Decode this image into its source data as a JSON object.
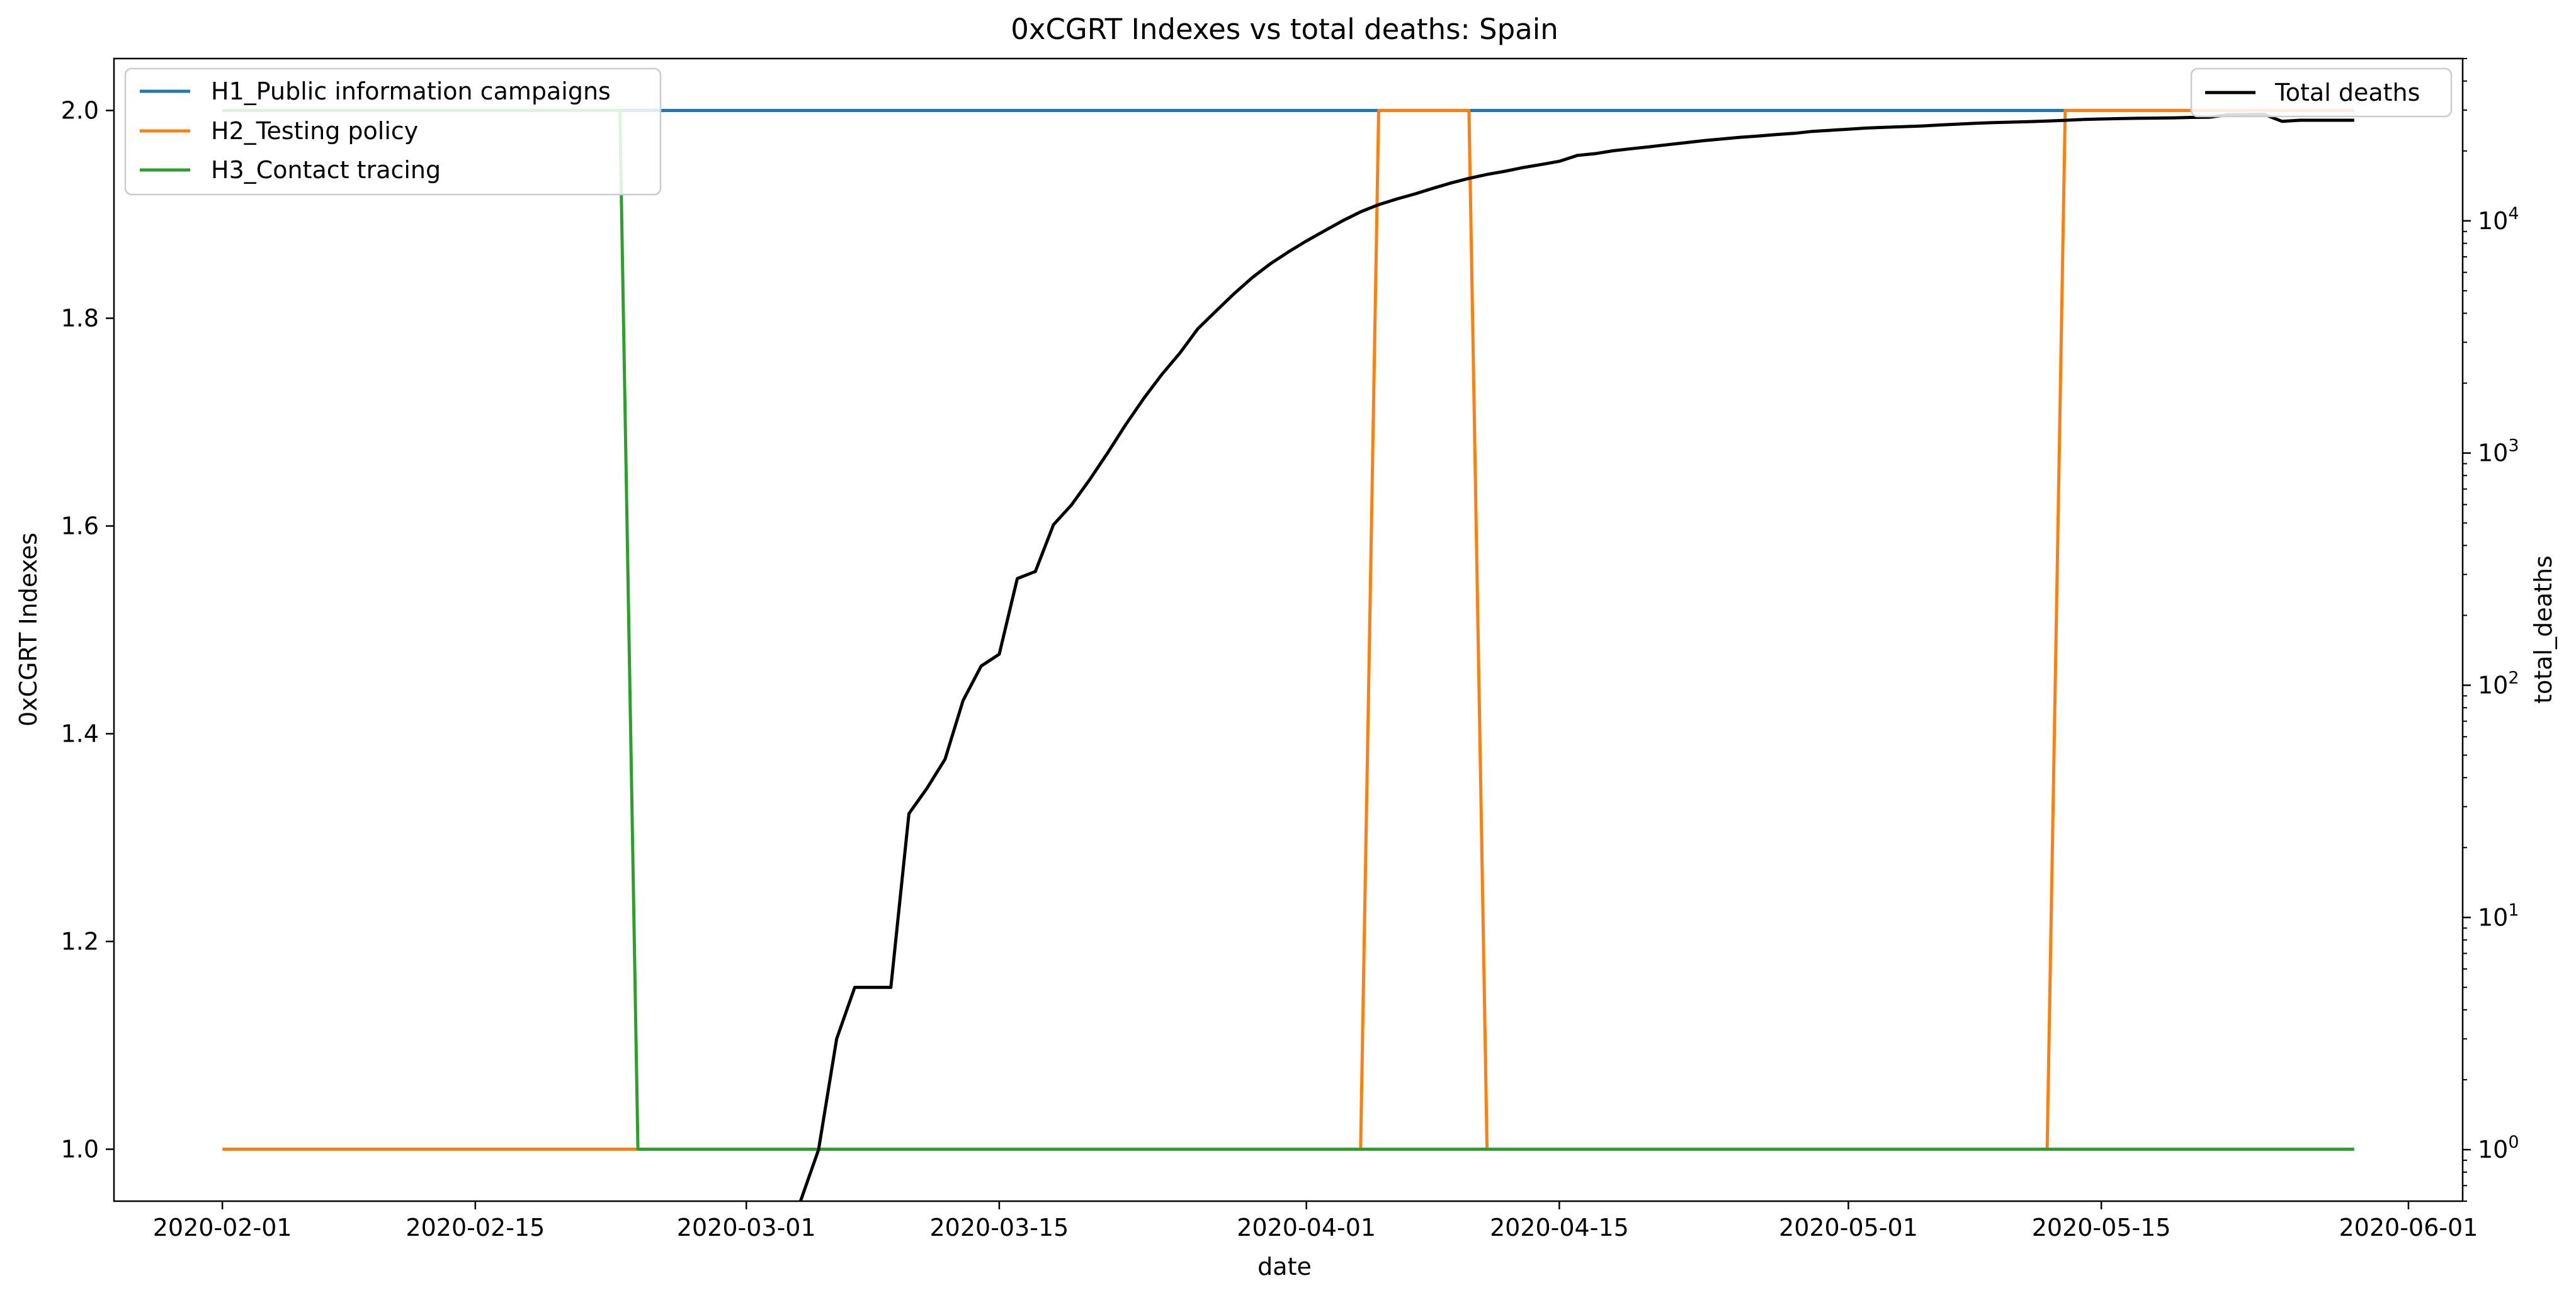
{
  "chart_data": {
    "type": "line",
    "title": "0xCGRT Indexes vs total deaths:  Spain",
    "xlabel": "date",
    "ylabel": "0xCGRT Indexes",
    "y2label": "total_deaths",
    "x_ticks": [
      "2020-02-01",
      "2020-02-15",
      "2020-03-01",
      "2020-03-15",
      "2020-04-01",
      "2020-04-15",
      "2020-05-01",
      "2020-05-15",
      "2020-06-01"
    ],
    "xlim": [
      "2020-01-26",
      "2020-06-04"
    ],
    "ylim": [
      0.95,
      2.05
    ],
    "y_ticks": [
      "1.0",
      "1.2",
      "1.4",
      "1.6",
      "1.8",
      "2.0"
    ],
    "y2_scale": "log",
    "y2lim": [
      0.6,
      50000
    ],
    "y2_ticks": [
      {
        "base": "10",
        "exp": "0"
      },
      {
        "base": "10",
        "exp": "1"
      },
      {
        "base": "10",
        "exp": "2"
      },
      {
        "base": "10",
        "exp": "3"
      },
      {
        "base": "10",
        "exp": "4"
      }
    ],
    "grid": false,
    "legend_left_position": "top-left",
    "legend_right_position": "top-right",
    "series": [
      {
        "name": "H1_Public information campaigns",
        "axis": "left",
        "color": "#1f77b4",
        "points": [
          [
            "2020-02-01",
            2.0
          ],
          [
            "2020-05-29",
            2.0
          ]
        ]
      },
      {
        "name": "H2_Testing policy",
        "axis": "left",
        "color": "#ff7f0e",
        "points": [
          [
            "2020-02-01",
            1.0
          ],
          [
            "2020-04-04",
            1.0
          ],
          [
            "2020-04-05",
            2.0
          ],
          [
            "2020-04-10",
            2.0
          ],
          [
            "2020-04-11",
            1.0
          ],
          [
            "2020-05-12",
            1.0
          ],
          [
            "2020-05-13",
            2.0
          ],
          [
            "2020-05-29",
            2.0
          ]
        ]
      },
      {
        "name": "H3_Contact tracing",
        "axis": "left",
        "color": "#2ca02c",
        "points": [
          [
            "2020-02-01",
            2.0
          ],
          [
            "2020-02-23",
            2.0
          ],
          [
            "2020-02-24",
            1.0
          ],
          [
            "2020-05-29",
            1.0
          ]
        ]
      },
      {
        "name": "Total deaths",
        "axis": "right",
        "color": "#000000",
        "points": [
          [
            "2020-03-04",
            0.6
          ],
          [
            "2020-03-05",
            1
          ],
          [
            "2020-03-06",
            3
          ],
          [
            "2020-03-07",
            5
          ],
          [
            "2020-03-08",
            5
          ],
          [
            "2020-03-09",
            5
          ],
          [
            "2020-03-10",
            28
          ],
          [
            "2020-03-11",
            36
          ],
          [
            "2020-03-12",
            48
          ],
          [
            "2020-03-13",
            86
          ],
          [
            "2020-03-14",
            121
          ],
          [
            "2020-03-15",
            136
          ],
          [
            "2020-03-16",
            288
          ],
          [
            "2020-03-17",
            309
          ],
          [
            "2020-03-18",
            491
          ],
          [
            "2020-03-19",
            598
          ],
          [
            "2020-03-20",
            767
          ],
          [
            "2020-03-21",
            1002
          ],
          [
            "2020-03-22",
            1326
          ],
          [
            "2020-03-23",
            1720
          ],
          [
            "2020-03-24",
            2182
          ],
          [
            "2020-03-25",
            2696
          ],
          [
            "2020-03-26",
            3434
          ],
          [
            "2020-03-27",
            4089
          ],
          [
            "2020-03-28",
            4858
          ],
          [
            "2020-03-29",
            5690
          ],
          [
            "2020-03-30",
            6528
          ],
          [
            "2020-03-31",
            7340
          ],
          [
            "2020-04-01",
            8189
          ],
          [
            "2020-04-02",
            9053
          ],
          [
            "2020-04-03",
            10003
          ],
          [
            "2020-04-04",
            10935
          ],
          [
            "2020-04-05",
            11744
          ],
          [
            "2020-04-06",
            12418
          ],
          [
            "2020-04-07",
            13055
          ],
          [
            "2020-04-08",
            13798
          ],
          [
            "2020-04-09",
            14555
          ],
          [
            "2020-04-10",
            15238
          ],
          [
            "2020-04-11",
            15843
          ],
          [
            "2020-04-12",
            16353
          ],
          [
            "2020-04-13",
            16972
          ],
          [
            "2020-04-14",
            17489
          ],
          [
            "2020-04-15",
            18056
          ],
          [
            "2020-04-16",
            19130
          ],
          [
            "2020-04-17",
            19478
          ],
          [
            "2020-04-18",
            20043
          ],
          [
            "2020-04-19",
            20453
          ],
          [
            "2020-04-20",
            20852
          ],
          [
            "2020-04-21",
            21282
          ],
          [
            "2020-04-22",
            21717
          ],
          [
            "2020-04-23",
            22157
          ],
          [
            "2020-04-24",
            22524
          ],
          [
            "2020-04-25",
            22902
          ],
          [
            "2020-04-26",
            23190
          ],
          [
            "2020-04-27",
            23521
          ],
          [
            "2020-04-28",
            23822
          ],
          [
            "2020-04-29",
            24275
          ],
          [
            "2020-04-30",
            24543
          ],
          [
            "2020-05-01",
            24824
          ],
          [
            "2020-05-02",
            25100
          ],
          [
            "2020-05-03",
            25264
          ],
          [
            "2020-05-04",
            25428
          ],
          [
            "2020-05-05",
            25613
          ],
          [
            "2020-05-06",
            25857
          ],
          [
            "2020-05-07",
            26070
          ],
          [
            "2020-05-08",
            26299
          ],
          [
            "2020-05-09",
            26478
          ],
          [
            "2020-05-10",
            26621
          ],
          [
            "2020-05-11",
            26744
          ],
          [
            "2020-05-12",
            26920
          ],
          [
            "2020-05-13",
            27104
          ],
          [
            "2020-05-14",
            27321
          ],
          [
            "2020-05-15",
            27459
          ],
          [
            "2020-05-16",
            27563
          ],
          [
            "2020-05-17",
            27650
          ],
          [
            "2020-05-18",
            27709
          ],
          [
            "2020-05-19",
            27778
          ],
          [
            "2020-05-20",
            27888
          ],
          [
            "2020-05-21",
            27940
          ],
          [
            "2020-05-22",
            28628
          ],
          [
            "2020-05-23",
            28678
          ],
          [
            "2020-05-24",
            28752
          ],
          [
            "2020-05-25",
            26834
          ],
          [
            "2020-05-26",
            27117
          ],
          [
            "2020-05-27",
            27117
          ],
          [
            "2020-05-28",
            27119
          ],
          [
            "2020-05-29",
            27121
          ]
        ]
      }
    ]
  }
}
